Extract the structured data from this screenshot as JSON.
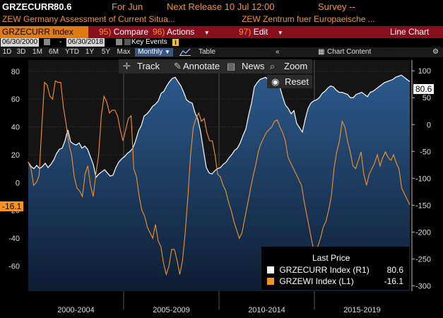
{
  "header": {
    "ticker": "GRZECURR",
    "last_value": "80.6",
    "for_label": "For Jun",
    "next_release": "Next Release 10 Jul 12:00",
    "survey": "Survey --",
    "desc_left": "ZEW Germany Assessment of Current Situa...",
    "desc_right": "ZEW Zentrum fuer Europaeische ..."
  },
  "command_bar": {
    "security": "GRZECURR Index",
    "compare_num": "95)",
    "compare": "Compare",
    "actions_num": "96)",
    "actions": "Actions",
    "edit_num": "97)",
    "edit": "Edit",
    "chart_type": "Line Chart"
  },
  "dates": {
    "start": "06/30/2000",
    "end": "06/30/2018",
    "key_events": "Key Events"
  },
  "periods": [
    "1D",
    "3D",
    "1M",
    "6M",
    "YTD",
    "1Y",
    "5Y",
    "Max"
  ],
  "frequency": "Monthly",
  "table_label": "Table",
  "chart_content_label": "Chart Content",
  "toolbar": {
    "track": "Track",
    "annotate": "Annotate",
    "news": "News",
    "zoom": "Zoom",
    "reset": "Reset"
  },
  "legend": {
    "title": "Last Price",
    "rows": [
      {
        "label": "GRZECURR Index  (R1)",
        "value": "80.6",
        "color": "#ffffff"
      },
      {
        "label": "GRZEWI Index  (L1)",
        "value": "-16.1",
        "color": "#f7931e"
      }
    ]
  },
  "badges": {
    "right": "80.6",
    "left": "-16.1"
  },
  "chart_data": {
    "type": "line",
    "x_range": [
      "2000-06",
      "2018-06"
    ],
    "x_tick_labels": [
      "2000-2004",
      "2005-2009",
      "2010-2014",
      "2015-2019"
    ],
    "left_axis": {
      "ticks": [
        80,
        60,
        40,
        20,
        0,
        -20,
        -40,
        -60
      ],
      "range": [
        -78,
        88
      ]
    },
    "right_axis": {
      "ticks": [
        100,
        50,
        0,
        -50,
        -100,
        -150,
        -200,
        -250,
        -300
      ],
      "range": [
        -310,
        120
      ]
    },
    "series": [
      {
        "name": "GRZECURR Index (R1)",
        "axis": "right",
        "color": "#ffffff",
        "style": "area",
        "values": [
          -70,
          -78,
          -82,
          -76,
          -82,
          -78,
          -72,
          -80,
          -74,
          -66,
          -54,
          -46,
          -44,
          -30,
          -10,
          -32,
          -36,
          -38,
          -34,
          -44,
          -40,
          -46,
          -60,
          -74,
          -98,
          -92,
          -88,
          -84,
          -90,
          -96,
          -94,
          -80,
          -70,
          -64,
          -60,
          -54,
          -50,
          -44,
          -30,
          -12,
          -2,
          16,
          20,
          26,
          34,
          38,
          44,
          58,
          62,
          72,
          80,
          86,
          88,
          80,
          72,
          60,
          46,
          42,
          40,
          22,
          10,
          -14,
          -48,
          -80,
          -90,
          -92,
          -86,
          -82,
          -80,
          -74,
          -70,
          -62,
          -56,
          -48,
          -44,
          -34,
          -20,
          -8,
          18,
          40,
          70,
          78,
          84,
          86,
          88,
          82,
          86,
          84,
          76,
          70,
          52,
          36,
          30,
          20,
          26,
          2,
          -6,
          -14,
          10,
          30,
          40,
          44,
          46,
          50,
          58,
          62,
          68,
          72,
          70,
          64,
          60,
          60,
          58,
          56,
          50,
          50,
          56,
          58,
          60,
          56,
          52,
          60,
          62,
          66,
          70,
          74,
          78,
          80,
          82,
          84,
          88,
          90,
          92,
          88,
          84,
          80
        ]
      },
      {
        "name": "GRZEWI Index (L1)",
        "axis": "left",
        "color": "#f7931e",
        "style": "line",
        "values": [
          15,
          10,
          -2,
          0,
          5,
          40,
          72,
          70,
          62,
          60,
          73,
          72,
          72,
          54,
          42,
          28,
          20,
          4,
          -4,
          -6,
          -10,
          6,
          12,
          -2,
          -10,
          6,
          20,
          48,
          62,
          58,
          50,
          52,
          52,
          48,
          38,
          30,
          38,
          46,
          48,
          10,
          4,
          -10,
          -20,
          -24,
          -32,
          -36,
          -40,
          -30,
          -42,
          -46,
          -58,
          -66,
          -60,
          -48,
          -48,
          -56,
          -66,
          -56,
          -36,
          -10,
          20,
          40,
          46,
          50,
          44,
          46,
          36,
          30,
          30,
          20,
          6,
          4,
          -2,
          -6,
          -14,
          -20,
          -28,
          -34,
          -40,
          -36,
          -26,
          -16,
          -6,
          4,
          12,
          22,
          28,
          32,
          36,
          38,
          40,
          44,
          45,
          40,
          36,
          30,
          18,
          14,
          10,
          6,
          2,
          -2,
          -14,
          -24,
          -34,
          -44,
          -52,
          -46,
          -40,
          -32,
          -28,
          -20,
          -10,
          10,
          22,
          30,
          44,
          40,
          30,
          22,
          12,
          10,
          16,
          22,
          6,
          -2,
          6,
          10,
          14,
          20,
          12,
          18,
          22,
          18,
          16,
          20,
          14,
          10,
          -4,
          -8,
          -12,
          -16.1
        ]
      }
    ],
    "last_values": {
      "GRZECURR": 80.6,
      "GRZEWI": -16.1
    }
  }
}
